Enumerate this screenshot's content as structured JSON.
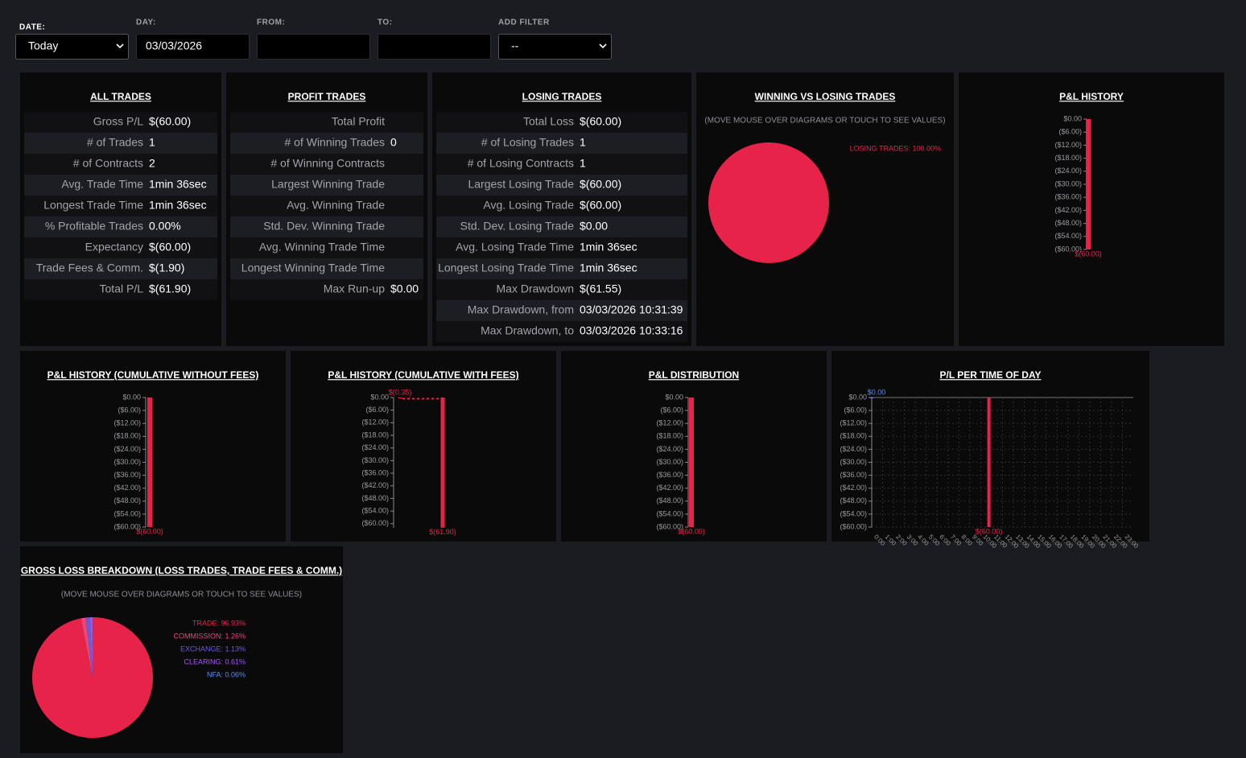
{
  "filters": [
    {
      "label": "DATE:",
      "value": "Today",
      "kind": "select"
    },
    {
      "label": "DAY:",
      "value": "03/03/2026",
      "kind": "input"
    },
    {
      "label": "FROM:",
      "kind": "input"
    },
    {
      "label": "TO:",
      "kind": "input"
    },
    {
      "label": "ADD FILTER",
      "value": "--",
      "kind": "select"
    }
  ],
  "all_trades": {
    "title": "ALL TRADES",
    "rows": [
      {
        "label": "Gross P/L",
        "value": "$(60.00)"
      },
      {
        "label": "# of Trades",
        "value": 1
      },
      {
        "label": "# of Contracts",
        "value": 2
      },
      {
        "label": "Avg. Trade Time",
        "value": "1min 36sec"
      },
      {
        "label": "Longest Trade Time",
        "value": "1min 36sec"
      },
      {
        "label": "% Profitable Trades",
        "value": "0.00%"
      },
      {
        "label": "Expectancy",
        "value": "$(60.00)"
      },
      {
        "label": "Trade Fees & Comm.",
        "value": "$(1.90)"
      },
      {
        "label": "Total P/L",
        "value": "$(61.90)"
      }
    ]
  },
  "profit_trades": {
    "title": "PROFIT TRADES",
    "rows": [
      {
        "label": "Total Profit"
      },
      {
        "label": "# of Winning Trades",
        "value": 0
      },
      {
        "label": "# of Winning Contracts"
      },
      {
        "label": "Largest Winning Trade"
      },
      {
        "label": "Avg. Winning Trade"
      },
      {
        "label": "Std. Dev. Winning Trade"
      },
      {
        "label": "Avg. Winning Trade Time"
      },
      {
        "label": "Longest Winning Trade Time"
      },
      {
        "label": "Max Run-up",
        "value": "$0.00"
      }
    ]
  },
  "losing_trades": {
    "title": "LOSING TRADES",
    "rows": [
      {
        "label": "Total Loss",
        "value": "$(60.00)"
      },
      {
        "label": "# of Losing Trades",
        "value": 1
      },
      {
        "label": "# of Losing Contracts",
        "value": 1
      },
      {
        "label": "Largest Losing Trade",
        "value": "$(60.00)"
      },
      {
        "label": "Avg. Losing Trade",
        "value": "$(60.00)"
      },
      {
        "label": "Std. Dev. Losing Trade",
        "value": "$0.00"
      },
      {
        "label": "Avg. Losing Trade Time",
        "value": "1min 36sec"
      },
      {
        "label": "Longest Losing Trade Time",
        "value": "1min 36sec"
      },
      {
        "label": "Max Drawdown",
        "value": "$(61.55)"
      },
      {
        "label": "Max Drawdown, from",
        "value": "03/03/2026 10:31:39"
      },
      {
        "label": "Max Drawdown, to",
        "value": "03/03/2026 10:33:16"
      }
    ]
  },
  "win_vs_loss": {
    "type": "pie",
    "title": "WINNING VS LOSING TRADES",
    "note": "(MOVE MOUSE OVER DIAGRAMS OR TOUCH TO SEE VALUES)",
    "values": [
      100
    ],
    "legend_labels": [
      "LOSING TRADES: 100.00%"
    ],
    "colors": [
      "#e8234a"
    ]
  },
  "pl_history": {
    "type": "bar",
    "title": "P&L HISTORY",
    "ylim": [
      -60,
      0
    ],
    "yticks": [
      {
        "value": 0,
        "label": "$0.00"
      },
      {
        "value": -6,
        "label": "($6.00)"
      },
      {
        "value": -12,
        "label": "($12.00)"
      },
      {
        "value": -18,
        "label": "($18.00)"
      },
      {
        "value": -24,
        "label": "($24.00)"
      },
      {
        "value": -30,
        "label": "($30.00)"
      },
      {
        "value": -36,
        "label": "($36.00)"
      },
      {
        "value": -42,
        "label": "($42.00)"
      },
      {
        "value": -48,
        "label": "($48.00)"
      },
      {
        "value": -54,
        "label": "($54.00)"
      },
      {
        "value": -60,
        "label": "($60.00)"
      }
    ],
    "values": [
      -60
    ],
    "value_labels": [
      "$(60.00)"
    ],
    "color": "#e8234a"
  },
  "pl_cum_no_fees": {
    "type": "bar",
    "title": "P&L HISTORY (CUMULATIVE WITHOUT FEES)",
    "ylim": [
      -60,
      0
    ],
    "yticks": [
      {
        "value": 0,
        "label": "$0.00"
      },
      {
        "value": -6,
        "label": "($6.00)"
      },
      {
        "value": -12,
        "label": "($12.00)"
      },
      {
        "value": -18,
        "label": "($18.00)"
      },
      {
        "value": -24,
        "label": "($24.00)"
      },
      {
        "value": -30,
        "label": "($30.00)"
      },
      {
        "value": -36,
        "label": "($36.00)"
      },
      {
        "value": -42,
        "label": "($42.00)"
      },
      {
        "value": -48,
        "label": "($48.00)"
      },
      {
        "value": -54,
        "label": "($54.00)"
      },
      {
        "value": -60,
        "label": "($60.00)"
      }
    ],
    "values": [
      -60
    ],
    "value_labels": [
      "$(60.00)"
    ],
    "color": "#e8234a"
  },
  "pl_cum_fees": {
    "type": "bar",
    "title": "P&L HISTORY (CUMULATIVE WITH FEES)",
    "ylim": [
      -62,
      0
    ],
    "yticks": [
      {
        "value": 0,
        "label": "$0.00"
      },
      {
        "value": -6,
        "label": "($6.00)"
      },
      {
        "value": -12,
        "label": "($12.00)"
      },
      {
        "value": -18,
        "label": "($18.00)"
      },
      {
        "value": -24,
        "label": "($24.00)"
      },
      {
        "value": -30,
        "label": "($30.00)"
      },
      {
        "value": -36,
        "label": "($36.00)"
      },
      {
        "value": -42,
        "label": "($42.00)"
      },
      {
        "value": -48,
        "label": "($48.00)"
      },
      {
        "value": -54,
        "label": "($54.00)"
      },
      {
        "value": -60,
        "label": "($60.00)"
      }
    ],
    "values": [
      -0.35,
      -61.9
    ],
    "value_labels": [
      "$(0.35)",
      "$(61.90)"
    ],
    "color": "#e8234a"
  },
  "pl_distribution": {
    "type": "bar",
    "title": "P&L DISTRIBUTION",
    "ylim": [
      -60,
      0
    ],
    "yticks": [
      {
        "value": 0,
        "label": "$0.00"
      },
      {
        "value": -6,
        "label": "($6.00)"
      },
      {
        "value": -12,
        "label": "($12.00)"
      },
      {
        "value": -18,
        "label": "($18.00)"
      },
      {
        "value": -24,
        "label": "($24.00)"
      },
      {
        "value": -30,
        "label": "($30.00)"
      },
      {
        "value": -36,
        "label": "($36.00)"
      },
      {
        "value": -42,
        "label": "($42.00)"
      },
      {
        "value": -48,
        "label": "($48.00)"
      },
      {
        "value": -54,
        "label": "($54.00)"
      },
      {
        "value": -60,
        "label": "($60.00)"
      }
    ],
    "values": [
      -60
    ],
    "value_labels": [
      "$(60.00)"
    ],
    "color": "#e8234a"
  },
  "pl_time_of_day": {
    "type": "bar",
    "title": "P/L PER TIME OF DAY",
    "ylim": [
      -60,
      0
    ],
    "yticks": [
      {
        "value": 0,
        "label": "$0.00"
      },
      {
        "value": -6,
        "label": "($6.00)"
      },
      {
        "value": -12,
        "label": "($12.00)"
      },
      {
        "value": -18,
        "label": "($18.00)"
      },
      {
        "value": -24,
        "label": "($24.00)"
      },
      {
        "value": -30,
        "label": "($30.00)"
      },
      {
        "value": -36,
        "label": "($36.00)"
      },
      {
        "value": -42,
        "label": "($42.00)"
      },
      {
        "value": -48,
        "label": "($48.00)"
      },
      {
        "value": -54,
        "label": "($54.00)"
      },
      {
        "value": -60,
        "label": "($60.00)"
      }
    ],
    "xlim": [
      0,
      24
    ],
    "xticks": [
      {
        "value": 0,
        "label": "0:00"
      },
      {
        "value": 1,
        "label": "1:00"
      },
      {
        "value": 2,
        "label": "2:00"
      },
      {
        "value": 3,
        "label": "3:00"
      },
      {
        "value": 4,
        "label": "4:00"
      },
      {
        "value": 5,
        "label": "5:00"
      },
      {
        "value": 6,
        "label": "6:00"
      },
      {
        "value": 7,
        "label": "7:00"
      },
      {
        "value": 8,
        "label": "8:00"
      },
      {
        "value": 9,
        "label": "9:00"
      },
      {
        "value": 10,
        "label": "10:00"
      },
      {
        "value": 11,
        "label": "11:00"
      },
      {
        "value": 12,
        "label": "12:00"
      },
      {
        "value": 13,
        "label": "13:00"
      },
      {
        "value": 14,
        "label": "14:00"
      },
      {
        "value": 15,
        "label": "15:00"
      },
      {
        "value": 16,
        "label": "16:00"
      },
      {
        "value": 17,
        "label": "17:00"
      },
      {
        "value": 18,
        "label": "18:00"
      },
      {
        "value": 19,
        "label": "19:00"
      },
      {
        "value": 20,
        "label": "20:00"
      },
      {
        "value": 21,
        "label": "21:00"
      },
      {
        "value": 22,
        "label": "22:00"
      },
      {
        "value": 23,
        "label": "23:00"
      }
    ],
    "grid": true,
    "x": [
      0,
      10.75
    ],
    "values": [
      0,
      -60
    ],
    "value_labels": [
      "$0.00",
      "$(60.00)"
    ],
    "colors": [
      "#5b8def",
      "#e8234a"
    ]
  },
  "gross_loss": {
    "type": "pie",
    "title": "GROSS LOSS BREAKDOWN (LOSS TRADES, TRADE FEES & COMM.)",
    "note": "(MOVE MOUSE OVER DIAGRAMS OR TOUCH TO SEE VALUES)",
    "values": [
      96.93,
      1.26,
      1.13,
      0.61,
      0.06
    ],
    "legend_labels": [
      "TRADE: 96.93%",
      "COMMISSION: 1.26%",
      "EXCHANGE: 1.13%",
      "CLEARING: 0.61%",
      "NFA: 0.06%"
    ],
    "colors": [
      "#e8234a",
      "#f0457a",
      "#6a5fd0",
      "#a855f7",
      "#5b8def"
    ]
  }
}
